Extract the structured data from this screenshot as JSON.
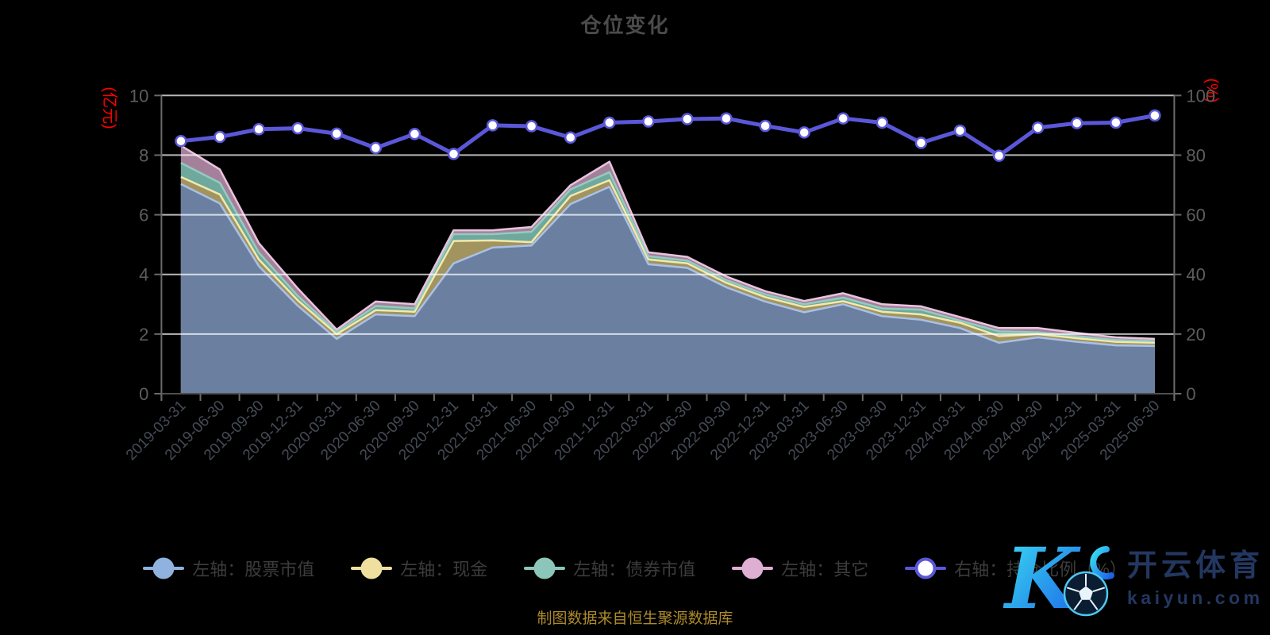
{
  "title": "仓位变化",
  "footer": {
    "source": "制图数据来自恒生聚源数据库"
  },
  "logo": {
    "k": "K",
    "brand": "开云体育",
    "domain": "kaiyun.com"
  },
  "legend": {
    "position": "bottom",
    "items": [
      {
        "id": "stock",
        "label": "左轴：股票市值",
        "color": "#8fb2de",
        "marker": "solid"
      },
      {
        "id": "cash",
        "label": "左轴：现金",
        "color": "#f0e0a0",
        "marker": "solid"
      },
      {
        "id": "bond",
        "label": "左轴：债券市值",
        "color": "#8cc6ba",
        "marker": "solid"
      },
      {
        "id": "other",
        "label": "左轴：其它",
        "color": "#dfaed3",
        "marker": "solid"
      },
      {
        "id": "ratio",
        "label": "右轴：持仓比例（%）",
        "color": "#5b57d9",
        "marker": "hollow"
      }
    ]
  },
  "chart_data": {
    "type": "area",
    "subtype": "stacked-area-with-line",
    "grid": true,
    "legend_position": "bottom",
    "title": "仓位变化",
    "categories": [
      "2019-03-31",
      "2019-06-30",
      "2019-09-30",
      "2019-12-31",
      "2020-03-31",
      "2020-06-30",
      "2020-09-30",
      "2020-12-31",
      "2021-03-31",
      "2021-06-30",
      "2021-09-30",
      "2021-12-31",
      "2022-03-31",
      "2022-06-30",
      "2022-09-30",
      "2022-12-31",
      "2023-03-31",
      "2023-06-30",
      "2023-09-30",
      "2023-12-31",
      "2024-03-31",
      "2024-06-30",
      "2024-09-30",
      "2024-12-31",
      "2025-03-31",
      "2025-06-30"
    ],
    "left_axis": {
      "label": "(亿元)",
      "min": 0,
      "max": 10,
      "tick_step": 2,
      "tick_labels": [
        "0",
        "2",
        "4",
        "6",
        "8",
        "10"
      ],
      "label_color": "#ff0000"
    },
    "right_axis": {
      "label": "(%)",
      "min": 0,
      "max": 100,
      "tick_step": 20,
      "tick_labels": [
        "0",
        "20",
        "40",
        "60",
        "80",
        "100"
      ],
      "label_color": "#ff0000"
    },
    "series": [
      {
        "name": "左轴：股票市值",
        "axis": "left",
        "type": "area",
        "stack": true,
        "color": "#8fb2de",
        "stroke": "#a9c1e8",
        "fill": "#6b80a1",
        "values": [
          7.03,
          6.38,
          4.28,
          2.95,
          1.84,
          2.66,
          2.6,
          4.37,
          4.9,
          4.97,
          6.36,
          6.94,
          4.34,
          4.22,
          3.57,
          3.09,
          2.73,
          3.0,
          2.6,
          2.48,
          2.2,
          1.71,
          1.89,
          1.74,
          1.62,
          1.6
        ]
      },
      {
        "name": "左轴：现金",
        "axis": "left",
        "type": "area",
        "stack": true,
        "color": "#f0e0a0",
        "stroke": "#f2e9ad",
        "fill": "#a2945f",
        "values": [
          0.24,
          0.3,
          0.22,
          0.18,
          0.16,
          0.14,
          0.15,
          0.75,
          0.24,
          0.11,
          0.27,
          0.22,
          0.16,
          0.15,
          0.15,
          0.15,
          0.18,
          0.1,
          0.15,
          0.18,
          0.18,
          0.22,
          0.11,
          0.12,
          0.12,
          0.11
        ]
      },
      {
        "name": "左轴：债券市值",
        "axis": "left",
        "type": "area",
        "stack": true,
        "color": "#8cc6ba",
        "stroke": "#93ccbf",
        "fill": "#6fa89c",
        "values": [
          0.47,
          0.39,
          0.23,
          0.15,
          0.07,
          0.14,
          0.11,
          0.23,
          0.21,
          0.35,
          0.22,
          0.27,
          0.11,
          0.09,
          0.09,
          0.09,
          0.09,
          0.12,
          0.11,
          0.16,
          0.07,
          0.16,
          0.06,
          0.07,
          0.06,
          0.06
        ]
      },
      {
        "name": "左轴：其它",
        "axis": "left",
        "type": "area",
        "stack": true,
        "color": "#dfaed3",
        "stroke": "#e9c3de",
        "fill": "#a5809b",
        "values": [
          0.58,
          0.45,
          0.32,
          0.25,
          0.08,
          0.15,
          0.14,
          0.13,
          0.13,
          0.16,
          0.14,
          0.35,
          0.13,
          0.13,
          0.12,
          0.11,
          0.11,
          0.15,
          0.14,
          0.11,
          0.12,
          0.11,
          0.14,
          0.11,
          0.09,
          0.07
        ]
      },
      {
        "name": "右轴：持仓比例（%）",
        "axis": "right",
        "type": "line",
        "color": "#5b57d9",
        "marker_fill": "#ffffff",
        "values": [
          84.7,
          86.1,
          88.7,
          89.0,
          87.2,
          82.4,
          87.1,
          80.4,
          90.0,
          89.7,
          85.9,
          90.9,
          91.3,
          92.1,
          92.3,
          89.8,
          87.6,
          92.3,
          90.9,
          84.1,
          88.2,
          79.8,
          89.2,
          90.7,
          90.9,
          93.3
        ]
      }
    ],
    "colors": {
      "background": "#000000",
      "gridline": "#c7c7c7",
      "axis_line": "#6a6a6a",
      "x_label": "#454a55",
      "y_label": "#5d5d5d",
      "title": "#4b4b4b"
    }
  }
}
